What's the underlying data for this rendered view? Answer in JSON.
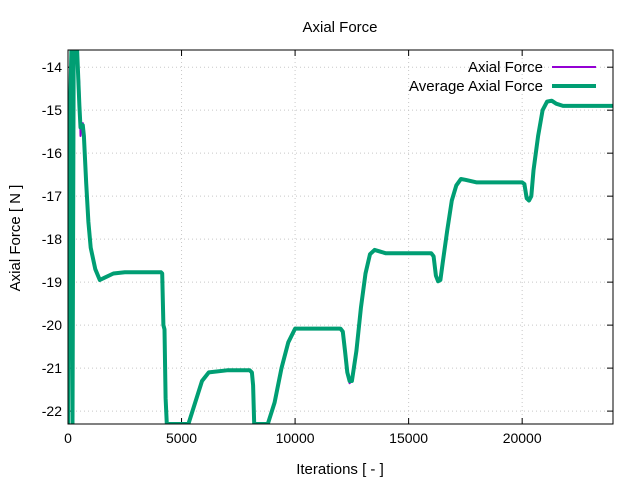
{
  "chart_data": {
    "type": "line",
    "title": "Axial Force",
    "xlabel": "Iterations [ - ]",
    "ylabel": "Axial Force [ N ]",
    "xlim": [
      0,
      24000
    ],
    "ylim": [
      -22.3,
      -13.6
    ],
    "xticks": [
      0,
      5000,
      10000,
      15000,
      20000
    ],
    "yticks": [
      -22,
      -21,
      -20,
      -19,
      -18,
      -17,
      -16,
      -15,
      -14
    ],
    "grid": true,
    "legend_position": "top-right",
    "series": [
      {
        "name": "Axial Force",
        "color": "#9400d3",
        "x": [
          0,
          50,
          100,
          150,
          200,
          250,
          300,
          400,
          500,
          550,
          600,
          650,
          700,
          800,
          900,
          1000,
          1200,
          1400,
          1600,
          2000,
          2500,
          3000,
          3500,
          4000,
          4100,
          4150,
          4200,
          4250,
          4300,
          4350,
          4400,
          4500,
          4700,
          5000,
          5300,
          5600,
          5900,
          6200,
          7000,
          8000,
          8100,
          8150,
          8200,
          8300,
          8500,
          8800,
          9100,
          9400,
          9700,
          10000,
          11000,
          12000,
          12100,
          12200,
          12300,
          12400,
          12500,
          12700,
          12900,
          13100,
          13300,
          13500,
          14000,
          15000,
          16000,
          16100,
          16200,
          16300,
          16400,
          16500,
          16700,
          16900,
          17100,
          17300,
          17500,
          18000,
          19000,
          20000,
          20100,
          20200,
          20300,
          20400,
          20500,
          20700,
          20900,
          21100,
          21300,
          21500,
          21800,
          22000,
          23000,
          24000
        ],
        "y": [
          -22.3,
          -16.5,
          -14.5,
          -13.6,
          -22.3,
          -13.6,
          -13.6,
          -13.6,
          -14.4,
          -15.6,
          -15.4,
          -15.3,
          -15.6,
          -16.7,
          -17.6,
          -18.2,
          -18.7,
          -18.95,
          -18.9,
          -18.8,
          -18.77,
          -18.77,
          -18.77,
          -18.77,
          -18.77,
          -18.8,
          -19.95,
          -20.1,
          -21.7,
          -22.3,
          -22.3,
          -22.3,
          -22.3,
          -22.3,
          -22.3,
          -21.8,
          -21.3,
          -21.1,
          -21.05,
          -21.05,
          -21.1,
          -21.4,
          -22.3,
          -22.3,
          -22.3,
          -22.3,
          -21.8,
          -21.0,
          -20.4,
          -20.08,
          -20.08,
          -20.08,
          -20.15,
          -20.6,
          -21.15,
          -21.35,
          -21.3,
          -20.6,
          -19.6,
          -18.8,
          -18.35,
          -18.25,
          -18.33,
          -18.33,
          -18.33,
          -18.4,
          -18.85,
          -18.98,
          -18.95,
          -18.55,
          -17.8,
          -17.1,
          -16.75,
          -16.6,
          -16.62,
          -16.68,
          -16.68,
          -16.68,
          -16.72,
          -17.05,
          -17.1,
          -17.0,
          -16.4,
          -15.6,
          -15.0,
          -14.8,
          -14.78,
          -14.85,
          -14.9,
          -14.9,
          -14.9,
          -14.9
        ]
      },
      {
        "name": "Average Axial Force",
        "color": "#009e73",
        "x": [
          0,
          50,
          100,
          150,
          200,
          250,
          300,
          400,
          500,
          550,
          600,
          650,
          700,
          800,
          900,
          1000,
          1200,
          1400,
          1600,
          2000,
          2500,
          3000,
          3500,
          4000,
          4100,
          4150,
          4200,
          4250,
          4300,
          4350,
          4400,
          4500,
          4700,
          5000,
          5300,
          5600,
          5900,
          6200,
          7000,
          8000,
          8100,
          8150,
          8200,
          8300,
          8500,
          8800,
          9100,
          9400,
          9700,
          10000,
          11000,
          12000,
          12100,
          12200,
          12300,
          12400,
          12500,
          12700,
          12900,
          13100,
          13300,
          13500,
          14000,
          15000,
          16000,
          16100,
          16200,
          16300,
          16400,
          16500,
          16700,
          16900,
          17100,
          17300,
          17500,
          18000,
          19000,
          20000,
          20100,
          20200,
          20300,
          20400,
          20500,
          20700,
          20900,
          21100,
          21300,
          21500,
          21800,
          22000,
          23000,
          24000
        ],
        "y": [
          -22.3,
          -16.8,
          -14.8,
          -13.6,
          -22.3,
          -13.6,
          -13.6,
          -13.6,
          -14.9,
          -15.4,
          -15.35,
          -15.35,
          -15.6,
          -16.7,
          -17.6,
          -18.2,
          -18.7,
          -18.95,
          -18.9,
          -18.8,
          -18.77,
          -18.77,
          -18.77,
          -18.77,
          -18.77,
          -18.8,
          -20.0,
          -20.1,
          -21.7,
          -22.3,
          -22.3,
          -22.3,
          -22.3,
          -22.3,
          -22.3,
          -21.8,
          -21.3,
          -21.1,
          -21.05,
          -21.05,
          -21.1,
          -21.4,
          -22.3,
          -22.3,
          -22.3,
          -22.3,
          -21.8,
          -21.0,
          -20.4,
          -20.08,
          -20.08,
          -20.08,
          -20.15,
          -20.6,
          -21.1,
          -21.3,
          -21.3,
          -20.6,
          -19.6,
          -18.8,
          -18.35,
          -18.25,
          -18.33,
          -18.33,
          -18.33,
          -18.4,
          -18.85,
          -18.98,
          -18.95,
          -18.55,
          -17.8,
          -17.1,
          -16.75,
          -16.6,
          -16.62,
          -16.68,
          -16.68,
          -16.68,
          -16.72,
          -17.05,
          -17.1,
          -17.0,
          -16.4,
          -15.6,
          -15.0,
          -14.8,
          -14.78,
          -14.85,
          -14.9,
          -14.9,
          -14.9,
          -14.9
        ]
      }
    ]
  }
}
